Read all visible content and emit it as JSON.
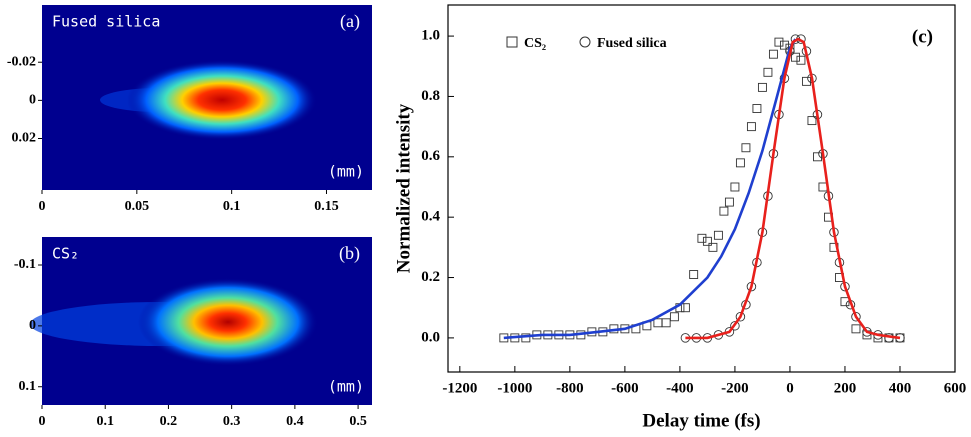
{
  "chart_data": [
    {
      "type": "image",
      "title": "Fused silica",
      "panel_label": "(a)",
      "unit_label": "(mm)",
      "xlim": [
        0,
        0.174
      ],
      "xticks": [
        0,
        0.05,
        0.1,
        0.15
      ],
      "ylim": [
        -0.05,
        0.047
      ],
      "yticks": [
        -0.02,
        0,
        0.02
      ]
    },
    {
      "type": "image",
      "title": "CS₂",
      "panel_label": "(b)",
      "unit_label": "(mm)",
      "xlim": [
        0,
        0.522
      ],
      "xticks": [
        0,
        0.1,
        0.2,
        0.3,
        0.4,
        0.5
      ],
      "ylim": [
        -0.146,
        0.13
      ],
      "yticks": [
        -0.1,
        0,
        0.1
      ]
    },
    {
      "type": "scatter",
      "panel_label": "(c)",
      "x_label": "Delay time (fs)",
      "y_label": "Normalized intensity",
      "xlim": [
        -1243,
        600
      ],
      "xticks": [
        -1200,
        -1000,
        -800,
        -600,
        -400,
        -200,
        0,
        200,
        400,
        600
      ],
      "ylim": [
        -0.113,
        1.103
      ],
      "yticks": [
        {
          "value": 0,
          "label": "0.0"
        },
        0.2,
        0.4,
        0.6,
        0.8,
        {
          "value": 1,
          "label": "1.0"
        }
      ],
      "series": [
        {
          "name": "CS₂",
          "marker": "square",
          "color": "#333333",
          "x": [
            -1040,
            -1000,
            -960,
            -920,
            -880,
            -840,
            -800,
            -760,
            -720,
            -680,
            -640,
            -600,
            -560,
            -520,
            -480,
            -450,
            -420,
            -400,
            -380,
            -350,
            -320,
            -300,
            -280,
            -260,
            -240,
            -220,
            -200,
            -180,
            -160,
            -140,
            -120,
            -100,
            -80,
            -60,
            -40,
            -20,
            0,
            20,
            40,
            60,
            80,
            100,
            120,
            140,
            160,
            180,
            200,
            240,
            280,
            320,
            360,
            400
          ],
          "values": [
            0.0,
            0.0,
            0.0,
            0.01,
            0.01,
            0.01,
            0.01,
            0.01,
            0.02,
            0.02,
            0.03,
            0.03,
            0.03,
            0.04,
            0.05,
            0.05,
            0.07,
            0.1,
            0.1,
            0.21,
            0.33,
            0.32,
            0.3,
            0.34,
            0.42,
            0.45,
            0.5,
            0.58,
            0.63,
            0.7,
            0.76,
            0.83,
            0.88,
            0.94,
            0.98,
            0.97,
            0.96,
            0.93,
            0.92,
            0.85,
            0.72,
            0.6,
            0.5,
            0.4,
            0.3,
            0.2,
            0.12,
            0.03,
            0.01,
            0.0,
            0.0,
            0.0
          ]
        },
        {
          "name": "Fused silica",
          "marker": "circle",
          "color": "#333333",
          "x": [
            -380,
            -340,
            -300,
            -260,
            -220,
            -200,
            -180,
            -160,
            -140,
            -120,
            -100,
            -80,
            -60,
            -40,
            -20,
            0,
            20,
            40,
            60,
            80,
            100,
            120,
            140,
            160,
            180,
            200,
            220,
            240,
            280,
            320,
            360,
            400
          ],
          "values": [
            0.0,
            0.0,
            0.0,
            0.01,
            0.02,
            0.04,
            0.07,
            0.11,
            0.17,
            0.25,
            0.35,
            0.47,
            0.61,
            0.74,
            0.86,
            0.95,
            0.99,
            0.99,
            0.95,
            0.86,
            0.74,
            0.61,
            0.47,
            0.35,
            0.25,
            0.17,
            0.11,
            0.07,
            0.02,
            0.01,
            0.0,
            0.0
          ]
        }
      ],
      "fits": [
        {
          "color": "#1f3fcf",
          "x": [
            -1040,
            -900,
            -800,
            -700,
            -600,
            -500,
            -400,
            -300,
            -250,
            -200,
            -150,
            -100,
            -50,
            0,
            20
          ],
          "values": [
            0.0,
            0.01,
            0.01,
            0.02,
            0.03,
            0.06,
            0.11,
            0.2,
            0.27,
            0.36,
            0.48,
            0.62,
            0.79,
            0.96,
            0.99
          ]
        },
        {
          "color": "#e8201c",
          "x": [
            -380,
            -300,
            -220,
            -180,
            -140,
            -100,
            -60,
            -20,
            10,
            30,
            50,
            80,
            120,
            160,
            200,
            240,
            280,
            320,
            400
          ],
          "values": [
            0,
            0,
            0.02,
            0.07,
            0.17,
            0.35,
            0.61,
            0.86,
            0.98,
            0.99,
            0.98,
            0.86,
            0.61,
            0.35,
            0.17,
            0.07,
            0.02,
            0.01,
            0
          ]
        }
      ]
    }
  ]
}
